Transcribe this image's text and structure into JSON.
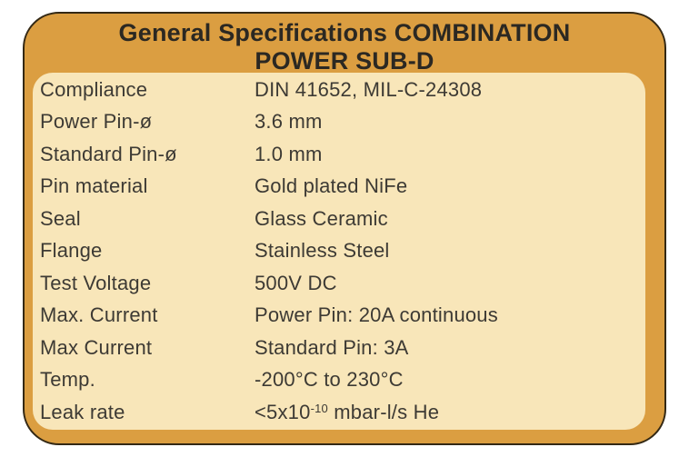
{
  "title": {
    "line1": "General Specifications COMBINATION",
    "line2": "POWER SUB-D"
  },
  "colors": {
    "frame_orange": "#DB9E41",
    "panel_cream": "#F8E6B9",
    "outline_dark": "#332814",
    "text_dark": "#3D3A34",
    "title_dark": "#2B2822"
  },
  "specs": [
    {
      "label": "Compliance",
      "value": "DIN 41652, MIL-C-24308"
    },
    {
      "label": "Power Pin-ø",
      "value": "3.6 mm"
    },
    {
      "label": "Standard Pin-ø",
      "value": "1.0 mm"
    },
    {
      "label": "Pin material",
      "value": "Gold plated NiFe"
    },
    {
      "label": "Seal",
      "value": "Glass Ceramic"
    },
    {
      "label": "Flange",
      "value": "Stainless Steel"
    },
    {
      "label": "Test Voltage",
      "value": "500V DC"
    },
    {
      "label": "Max. Current",
      "value": "Power Pin: 20A continuous"
    },
    {
      "label": "Max Current",
      "value": "Standard Pin: 3A"
    },
    {
      "label": "Temp.",
      "value": "-200°C to 230°C"
    },
    {
      "label": "Leak rate",
      "value_pre": "<5x10",
      "value_sup": "-10",
      "value_post": " mbar-l/s He"
    }
  ]
}
